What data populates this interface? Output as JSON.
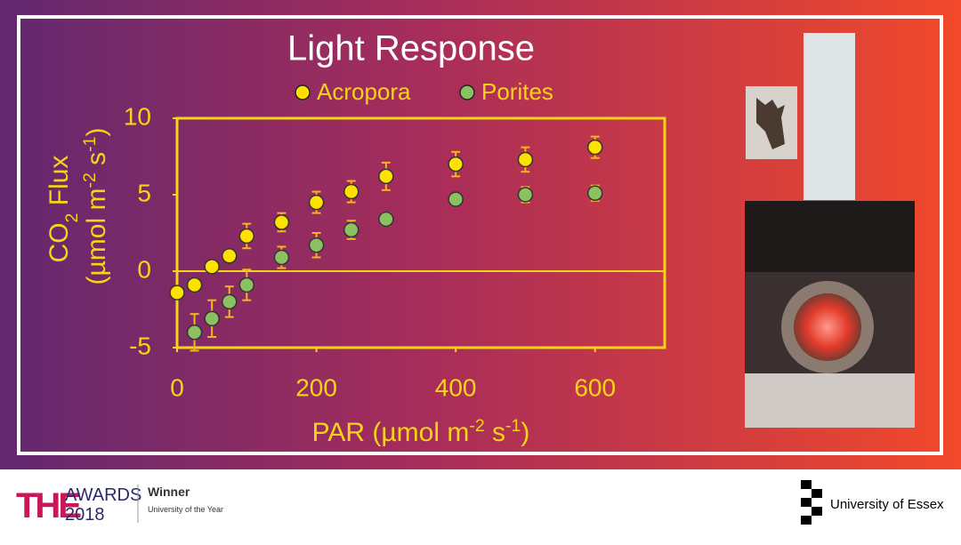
{
  "chart_data": {
    "type": "scatter",
    "title": "Light Response",
    "x_label": [
      "PAR (µmol m",
      "-2",
      " s",
      "-1",
      ")"
    ],
    "y_label": [
      [
        "CO",
        "2",
        " Flux"
      ],
      [
        "(µmol m",
        "-2",
        " s",
        "-1",
        ")"
      ]
    ],
    "x": [
      0,
      25,
      50,
      75,
      100,
      150,
      200,
      250,
      300,
      400,
      500,
      600
    ],
    "series": [
      {
        "name": "Acropora",
        "color": "#ffe100",
        "values": [
          -1.4,
          -0.9,
          0.3,
          1.0,
          2.3,
          3.2,
          4.5,
          5.2,
          6.2,
          7.0,
          7.3,
          8.1
        ],
        "errors": [
          0.3,
          0.3,
          0.3,
          0.3,
          0.8,
          0.6,
          0.7,
          0.7,
          0.9,
          0.8,
          0.8,
          0.7
        ]
      },
      {
        "name": "Porites",
        "color": "#8cc063",
        "values": [
          null,
          -4.0,
          -3.1,
          -2.0,
          -0.9,
          0.9,
          1.7,
          2.7,
          3.4,
          4.7,
          5.0,
          5.1
        ],
        "errors": [
          null,
          1.2,
          1.2,
          1.0,
          1.0,
          0.7,
          0.8,
          0.6,
          0.4,
          0.3,
          0.5,
          0.5
        ]
      }
    ],
    "xlim": [
      0,
      700
    ],
    "xticks": [
      0,
      200,
      400,
      600
    ],
    "ylim": [
      -5,
      10
    ],
    "yticks": [
      -5,
      0,
      5,
      10
    ],
    "zero_line": true
  },
  "footer": {
    "award_logo": "THE",
    "award_word": "AWARDS",
    "award_year": "2018",
    "winner": "Winner",
    "winner_detail": "University of the Year",
    "university": "University of Essex"
  }
}
